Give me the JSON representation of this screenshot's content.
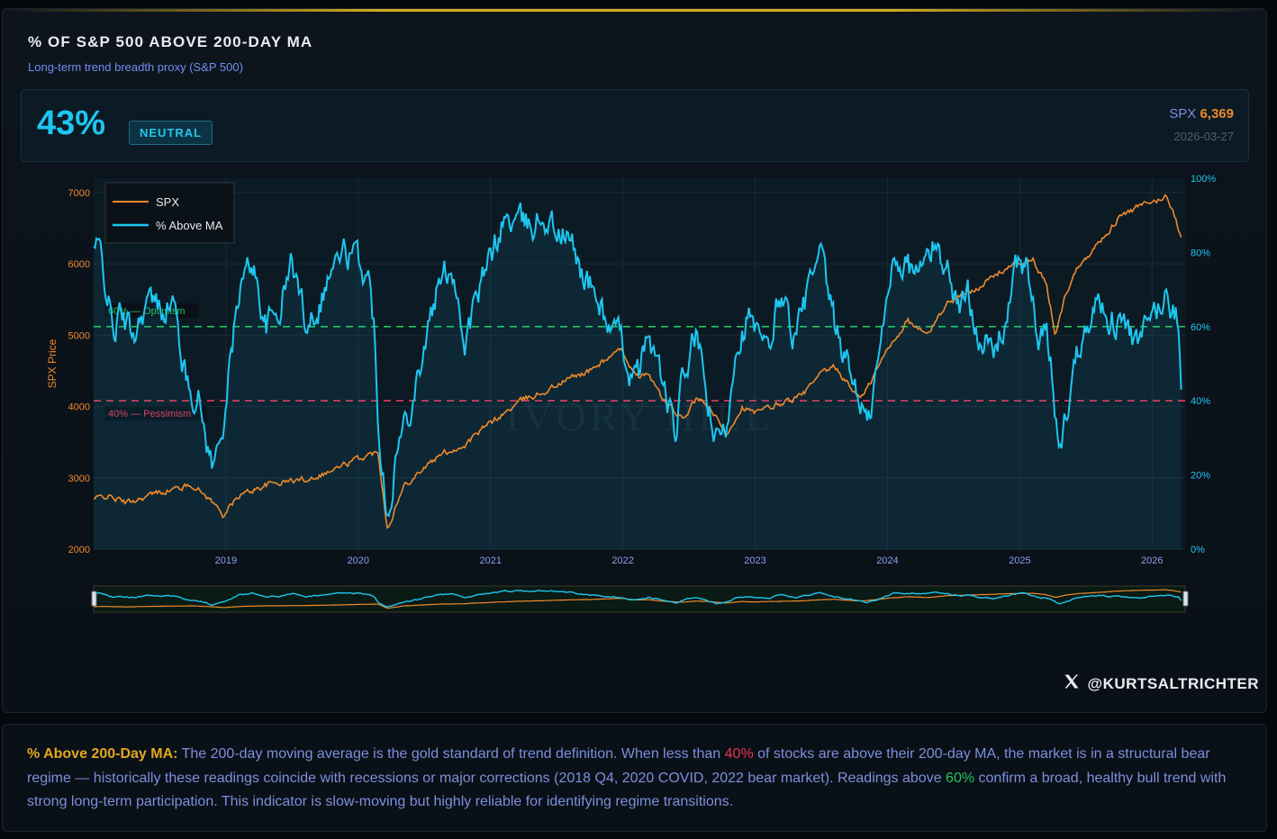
{
  "header": {
    "title": "% OF S&P 500 ABOVE 200-DAY MA",
    "subtitle": "Long-term trend breadth proxy (S&P 500)"
  },
  "kpi": {
    "value": "43%",
    "badge": "NEUTRAL",
    "spx_label": "SPX",
    "spx_value": "6,369",
    "date": "2026-03-27"
  },
  "colors": {
    "spx": "#f08a2a",
    "pct": "#1ec6f0",
    "optimism": "#22c55e",
    "pessimism": "#e8385a",
    "accent_gold": "#d4ad1c"
  },
  "chart_data": {
    "type": "line",
    "legend_position": "top-left",
    "watermark": "IVORY HILL",
    "y_left": {
      "label": "SPX Price",
      "ticks": [
        2000,
        3000,
        4000,
        5000,
        6000,
        7000
      ],
      "range": [
        2000,
        7200
      ]
    },
    "y_right": {
      "ticks": [
        "0%",
        "20%",
        "40%",
        "60%",
        "80%",
        "100%"
      ],
      "range": [
        0,
        100
      ]
    },
    "x_ticks": [
      "2019",
      "2020",
      "2021",
      "2022",
      "2023",
      "2024",
      "2025",
      "2026"
    ],
    "x_range": [
      2018.0,
      2026.25
    ],
    "reference_lines": [
      {
        "value": 60,
        "label": "60% — Optimism",
        "color": "#22c55e"
      },
      {
        "value": 40,
        "label": "40% — Pessimism",
        "color": "#e8385a"
      }
    ],
    "series": [
      {
        "name": "SPX",
        "axis": "left",
        "x": [
          2018.0,
          2018.1,
          2018.25,
          2018.5,
          2018.75,
          2018.88,
          2018.98,
          2019.1,
          2019.3,
          2019.45,
          2019.6,
          2019.8,
          2019.95,
          2020.1,
          2020.15,
          2020.22,
          2020.35,
          2020.5,
          2020.65,
          2020.8,
          2020.95,
          2021.1,
          2021.25,
          2021.4,
          2021.6,
          2021.75,
          2021.9,
          2022.0,
          2022.1,
          2022.2,
          2022.3,
          2022.45,
          2022.55,
          2022.65,
          2022.78,
          2022.9,
          2023.0,
          2023.2,
          2023.35,
          2023.5,
          2023.6,
          2023.75,
          2023.82,
          2024.0,
          2024.15,
          2024.3,
          2024.45,
          2024.6,
          2024.75,
          2024.9,
          2025.0,
          2025.1,
          2025.2,
          2025.27,
          2025.35,
          2025.45,
          2025.6,
          2025.75,
          2025.9,
          2026.0,
          2026.1,
          2026.15,
          2026.22
        ],
        "values": [
          2700,
          2750,
          2650,
          2800,
          2900,
          2700,
          2480,
          2750,
          2900,
          2950,
          2980,
          3100,
          3230,
          3330,
          3380,
          2300,
          2900,
          3150,
          3350,
          3450,
          3700,
          3900,
          4100,
          4200,
          4400,
          4500,
          4700,
          4780,
          4400,
          4450,
          4100,
          3800,
          4100,
          4000,
          3600,
          4000,
          3900,
          4050,
          4150,
          4450,
          4550,
          4200,
          4150,
          4800,
          5200,
          5000,
          5450,
          5600,
          5750,
          5950,
          6000,
          6050,
          5700,
          5000,
          5600,
          6000,
          6300,
          6650,
          6800,
          6850,
          6950,
          6800,
          6369
        ]
      },
      {
        "name": "% Above MA",
        "axis": "right",
        "x": [
          2018.0,
          2018.05,
          2018.1,
          2018.15,
          2018.2,
          2018.3,
          2018.4,
          2018.5,
          2018.6,
          2018.7,
          2018.8,
          2018.85,
          2018.9,
          2018.95,
          2019.0,
          2019.1,
          2019.2,
          2019.3,
          2019.4,
          2019.5,
          2019.6,
          2019.7,
          2019.8,
          2019.9,
          2020.0,
          2020.08,
          2020.12,
          2020.15,
          2020.2,
          2020.22,
          2020.3,
          2020.4,
          2020.5,
          2020.6,
          2020.7,
          2020.75,
          2020.8,
          2020.9,
          2021.0,
          2021.1,
          2021.2,
          2021.3,
          2021.4,
          2021.5,
          2021.6,
          2021.7,
          2021.8,
          2021.9,
          2022.0,
          2022.05,
          2022.1,
          2022.2,
          2022.3,
          2022.4,
          2022.45,
          2022.55,
          2022.65,
          2022.7,
          2022.78,
          2022.85,
          2022.95,
          2023.0,
          2023.05,
          2023.1,
          2023.15,
          2023.2,
          2023.3,
          2023.4,
          2023.5,
          2023.6,
          2023.7,
          2023.8,
          2023.85,
          2023.95,
          2024.05,
          2024.15,
          2024.25,
          2024.35,
          2024.45,
          2024.55,
          2024.6,
          2024.7,
          2024.8,
          2024.9,
          2025.0,
          2025.05,
          2025.1,
          2025.15,
          2025.2,
          2025.25,
          2025.3,
          2025.4,
          2025.5,
          2025.6,
          2025.7,
          2025.8,
          2025.9,
          2026.0,
          2026.1,
          2026.15,
          2026.2,
          2026.22
        ],
        "values": [
          81,
          80,
          70,
          58,
          63,
          58,
          67,
          65,
          67,
          45,
          40,
          30,
          22,
          28,
          40,
          70,
          78,
          60,
          64,
          78,
          62,
          66,
          76,
          80,
          78,
          72,
          60,
          35,
          18,
          10,
          28,
          40,
          55,
          70,
          77,
          70,
          55,
          68,
          78,
          89,
          88,
          87,
          90,
          86,
          83,
          74,
          68,
          60,
          55,
          48,
          45,
          58,
          45,
          30,
          45,
          58,
          38,
          28,
          32,
          55,
          63,
          58,
          55,
          52,
          63,
          70,
          56,
          70,
          78,
          60,
          50,
          40,
          32,
          55,
          80,
          76,
          75,
          82,
          76,
          64,
          70,
          58,
          52,
          63,
          79,
          76,
          65,
          55,
          58,
          45,
          25,
          48,
          62,
          67,
          62,
          60,
          54,
          63,
          68,
          66,
          62,
          43
        ]
      }
    ]
  },
  "footer": {
    "handle": "@KURTSALTRICHTER"
  },
  "note": {
    "lead": "% Above 200-Day MA:",
    "part1": " The 200-day moving average is the gold standard of trend definition. When less than ",
    "pct_low": "40%",
    "part2": " of stocks are above their 200-day MA, the market is in a structural bear regime — historically these readings coincide with recessions or major corrections (2018 Q4, 2020 COVID, 2022 bear market). Readings above ",
    "pct_high": "60%",
    "part3": " confirm a broad, healthy bull trend with strong long-term participation. This indicator is slow-moving but highly reliable for identifying regime transitions."
  }
}
